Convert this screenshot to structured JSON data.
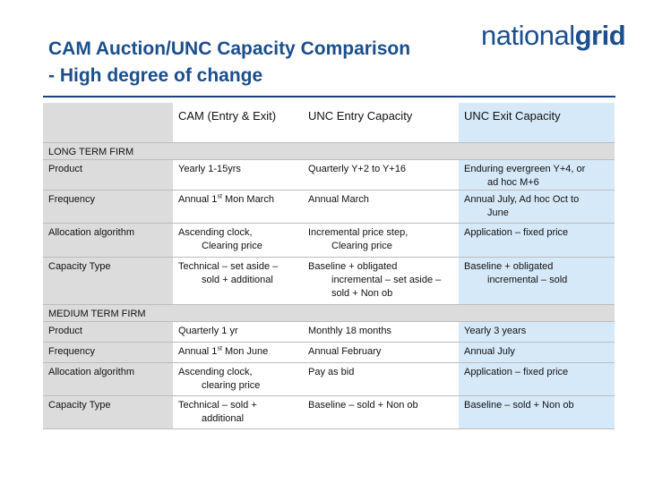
{
  "title_line1": "CAM Auction/UNC Capacity Comparison",
  "title_line2": "- High degree of change",
  "logo": {
    "part1": "national",
    "part2": "grid"
  },
  "colors": {
    "title": "#1a4e8c",
    "header_gray": "#dcdcdc",
    "blue_col": "#d6e9f8"
  },
  "table": {
    "headers": [
      "",
      "CAM (Entry & Exit)",
      "UNC Entry Capacity",
      "UNC Exit Capacity"
    ],
    "sections": [
      {
        "label": "LONG TERM FIRM",
        "rows": [
          {
            "label": "Product",
            "cells": [
              [
                "Yearly 1-15yrs"
              ],
              [
                "Quarterly Y+2 to Y+16"
              ],
              [
                "Enduring evergreen Y+4, or",
                "ad hoc M+6"
              ]
            ]
          },
          {
            "label": "Frequency",
            "cells": [
              [
                "Annual 1",
                "st",
                " Mon March"
              ],
              [
                "Annual March"
              ],
              [
                "Annual July, Ad hoc Oct to",
                "June"
              ]
            ]
          },
          {
            "label": "Allocation algorithm",
            "cells": [
              [
                "Ascending clock,",
                "Clearing price"
              ],
              [
                "Incremental price step,",
                "Clearing price"
              ],
              [
                "Application – fixed price"
              ]
            ]
          },
          {
            "label": "Capacity Type",
            "cells": [
              [
                "Technical – set aside –",
                "sold + additional"
              ],
              [
                "Baseline + obligated",
                "incremental – set aside –",
                "sold + Non ob"
              ],
              [
                "Baseline + obligated",
                "incremental – sold"
              ]
            ]
          }
        ]
      },
      {
        "label": "MEDIUM TERM FIRM",
        "rows": [
          {
            "label": "Product",
            "cells": [
              [
                "Quarterly 1 yr"
              ],
              [
                "Monthly 18 months"
              ],
              [
                "Yearly 3 years"
              ]
            ]
          },
          {
            "label": "Frequency",
            "cells": [
              [
                "Annual 1",
                "st",
                " Mon June"
              ],
              [
                "Annual February"
              ],
              [
                "Annual July"
              ]
            ]
          },
          {
            "label": "Allocation algorithm",
            "cells": [
              [
                "Ascending clock,",
                "clearing price"
              ],
              [
                "Pay as bid"
              ],
              [
                "Application – fixed price"
              ]
            ]
          },
          {
            "label": "Capacity Type",
            "cells": [
              [
                "Technical – sold +",
                "additional"
              ],
              [
                "Baseline – sold + Non ob"
              ],
              [
                "Baseline – sold + Non ob"
              ]
            ]
          }
        ]
      }
    ]
  }
}
